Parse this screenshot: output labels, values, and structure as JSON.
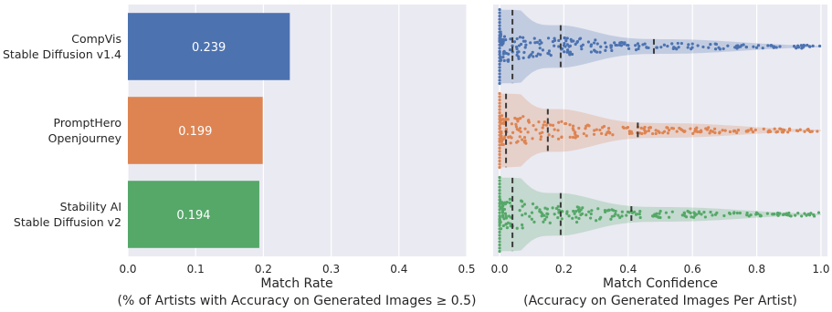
{
  "chart_data": [
    {
      "type": "bar",
      "orientation": "horizontal",
      "categories": [
        [
          "CompVis",
          "Stable Diffusion v1.4"
        ],
        [
          "PromptHero",
          "Openjourney"
        ],
        [
          "Stability AI",
          "Stable Diffusion v2"
        ]
      ],
      "values": [
        0.239,
        0.199,
        0.194
      ],
      "value_labels": [
        "0.239",
        "0.199",
        "0.194"
      ],
      "colors": [
        "#4c72b0",
        "#dd8452",
        "#55a868"
      ],
      "xlabel": [
        "Match Rate",
        "(% of Artists with Accuracy on Generated Images ≥ 0.5)"
      ],
      "xlim": [
        0,
        0.5
      ],
      "xticks": [
        "0.0",
        "0.1",
        "0.2",
        "0.3",
        "0.4",
        "0.5"
      ],
      "grid": true,
      "background": "#eaeaf2"
    },
    {
      "type": "violin+swarm",
      "orientation": "horizontal",
      "series": [
        {
          "quartiles": [
            0.04,
            0.19,
            0.48
          ],
          "color": "#4c72b0"
        },
        {
          "quartiles": [
            0.02,
            0.15,
            0.43
          ],
          "color": "#dd8452"
        },
        {
          "quartiles": [
            0.04,
            0.19,
            0.41
          ],
          "color": "#55a868"
        }
      ],
      "xlabel": [
        "Match Confidence",
        "(Accuracy on Generated Images Per Artist)"
      ],
      "xlim": [
        -0.02,
        1.02
      ],
      "xticks": [
        "0.0",
        "0.2",
        "0.4",
        "0.6",
        "0.8",
        "1.0"
      ],
      "grid": true,
      "background": "#eaeaf2"
    }
  ]
}
